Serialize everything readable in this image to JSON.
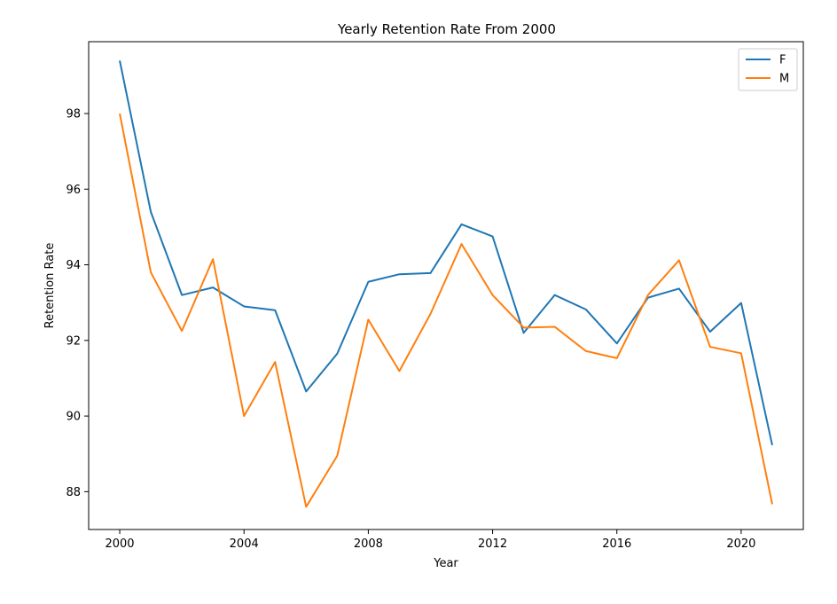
{
  "chart_data": {
    "type": "line",
    "title": "Yearly Retention Rate From 2000",
    "xlabel": "Year",
    "ylabel": "Retention Rate",
    "xlim": [
      1999,
      2022
    ],
    "ylim": [
      87.0,
      99.9
    ],
    "xticks": [
      2000,
      2004,
      2008,
      2012,
      2016,
      2020
    ],
    "yticks": [
      88,
      90,
      92,
      94,
      96,
      98
    ],
    "grid": false,
    "legend": "top-right",
    "x": [
      2000,
      2001,
      2002,
      2003,
      2004,
      2005,
      2006,
      2007,
      2008,
      2009,
      2010,
      2011,
      2012,
      2013,
      2014,
      2015,
      2016,
      2017,
      2018,
      2019,
      2020,
      2021
    ],
    "series": [
      {
        "name": "F",
        "color": "#1f77b4",
        "values": [
          99.4,
          95.4,
          93.2,
          93.4,
          92.9,
          92.8,
          90.65,
          91.65,
          93.55,
          93.75,
          93.78,
          95.07,
          94.75,
          92.2,
          93.2,
          92.82,
          91.92,
          93.13,
          93.37,
          92.23,
          92.99,
          89.23
        ]
      },
      {
        "name": "M",
        "color": "#ff7f0e",
        "values": [
          98.0,
          93.8,
          92.25,
          94.15,
          90.0,
          91.43,
          87.6,
          88.95,
          92.55,
          91.19,
          92.7,
          94.55,
          93.2,
          92.34,
          92.36,
          91.72,
          91.53,
          93.2,
          94.12,
          91.83,
          91.66,
          87.67
        ]
      }
    ]
  }
}
